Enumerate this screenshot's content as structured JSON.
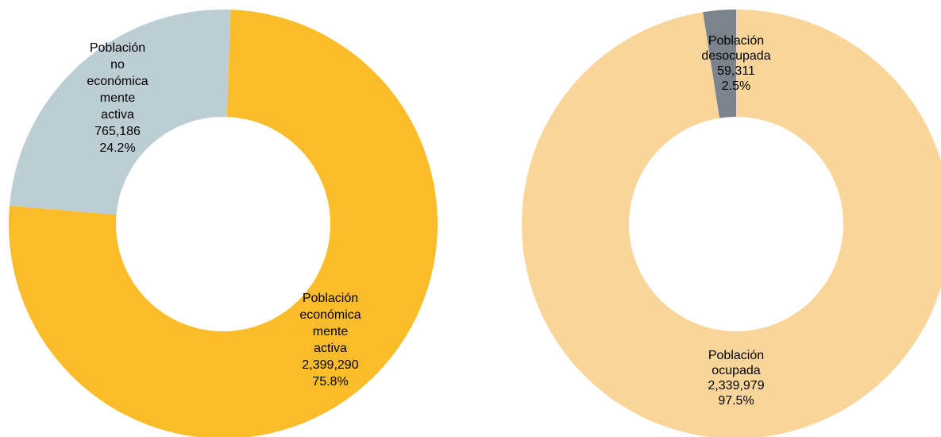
{
  "chart_data": [
    {
      "type": "donut",
      "categories": [
        [
          "Población",
          "económica",
          "mente",
          "activa"
        ],
        [
          "Población",
          "no",
          "económica",
          "mente",
          "activa"
        ]
      ],
      "values": [
        2399290,
        765186
      ],
      "value_labels": [
        "2,399,290",
        "765,186"
      ],
      "percentages": [
        75.8,
        24.2
      ],
      "percentage_labels": [
        "75.8%",
        "24.2%"
      ],
      "colors": [
        "#fbbc2a",
        "#bccdd4"
      ]
    },
    {
      "type": "donut",
      "categories": [
        [
          "Población",
          "ocupada"
        ],
        [
          "Población",
          "desocupada"
        ]
      ],
      "values": [
        2339979,
        59311
      ],
      "value_labels": [
        "2,339,979",
        "59,311"
      ],
      "percentages": [
        97.5,
        2.5
      ],
      "percentage_labels": [
        "97.5%",
        "2.5%"
      ],
      "colors": [
        "#fad59a",
        "#7b848c"
      ]
    }
  ]
}
